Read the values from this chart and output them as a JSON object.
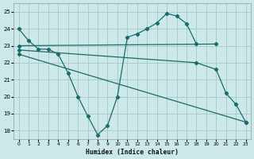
{
  "xlabel": "Humidex (Indice chaleur)",
  "xlim": [
    -0.5,
    23.5
  ],
  "ylim": [
    17.5,
    25.5
  ],
  "yticks": [
    18,
    19,
    20,
    21,
    22,
    23,
    24,
    25
  ],
  "xticks": [
    0,
    1,
    2,
    3,
    4,
    5,
    6,
    7,
    8,
    9,
    10,
    11,
    12,
    13,
    14,
    15,
    16,
    17,
    18,
    19,
    20,
    21,
    22,
    23
  ],
  "bg_color": "#cce8e8",
  "grid_color": "#aacccc",
  "line_color": "#1a6b6b",
  "lines": [
    {
      "x": [
        0,
        1,
        2,
        3,
        4,
        5,
        6,
        7,
        8,
        9,
        10,
        11,
        12,
        13,
        14,
        15,
        16,
        17,
        18,
        19,
        20,
        21,
        22,
        23
      ],
      "y": [
        24.0,
        23.3,
        22.8,
        22.8,
        22.5,
        21.4,
        20.0,
        18.85,
        17.75,
        18.3,
        20.0,
        23.5,
        23.7,
        24.0,
        24.35,
        24.9,
        24.75,
        24.3,
        23.1,
        null,
        null,
        null,
        null,
        null
      ]
    },
    {
      "x": [
        0,
        20
      ],
      "y": [
        23.0,
        23.1
      ]
    },
    {
      "x": [
        0,
        18,
        20,
        21,
        22,
        23
      ],
      "y": [
        22.75,
        22.0,
        21.6,
        20.2,
        19.55,
        18.5
      ]
    },
    {
      "x": [
        0,
        23
      ],
      "y": [
        22.5,
        18.5
      ]
    }
  ]
}
